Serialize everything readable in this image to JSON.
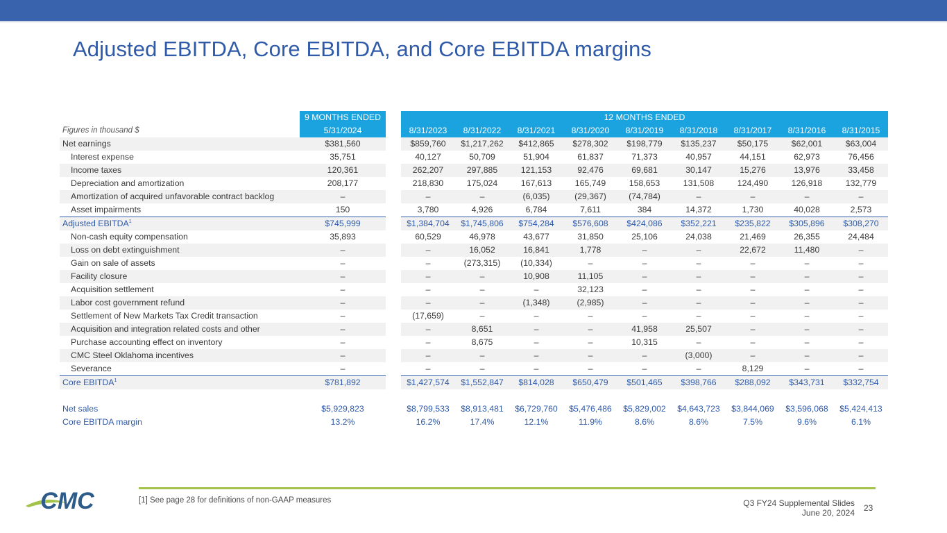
{
  "title": "Adjusted EBITDA, Core EBITDA, and Core EBITDA margins",
  "table": {
    "header_group_left": "9 MONTHS ENDED",
    "header_group_right": "12 MONTHS ENDED",
    "figures_note": "Figures in thousand $",
    "columns": [
      "5/31/2024",
      "8/31/2023",
      "8/31/2022",
      "8/31/2021",
      "8/31/2020",
      "8/31/2019",
      "8/31/2018",
      "8/31/2017",
      "8/31/2016",
      "8/31/2015"
    ],
    "rows": [
      {
        "label": "Net earnings",
        "values": [
          "$381,560",
          "$859,760",
          "$1,217,262",
          "$412,865",
          "$278,302",
          "$198,779",
          "$135,237",
          "$50,175",
          "$62,001",
          "$63,004"
        ]
      },
      {
        "label": "Interest expense",
        "values": [
          "35,751",
          "40,127",
          "50,709",
          "51,904",
          "61,837",
          "71,373",
          "40,957",
          "44,151",
          "62,973",
          "76,456"
        ]
      },
      {
        "label": "Income taxes",
        "values": [
          "120,361",
          "262,207",
          "297,885",
          "121,153",
          "92,476",
          "69,681",
          "30,147",
          "15,276",
          "13,976",
          "33,458"
        ]
      },
      {
        "label": "Depreciation and amortization",
        "values": [
          "208,177",
          "218,830",
          "175,024",
          "167,613",
          "165,749",
          "158,653",
          "131,508",
          "124,490",
          "126,918",
          "132,779"
        ]
      },
      {
        "label": "Amortization of acquired unfavorable contract backlog",
        "values": [
          "–",
          "–",
          "–",
          "(6,035)",
          "(29,367)",
          "(74,784)",
          "–",
          "–",
          "–",
          "–"
        ]
      },
      {
        "label": "Asset impairments",
        "values": [
          "150",
          "3,780",
          "4,926",
          "6,784",
          "7,611",
          "384",
          "14,372",
          "1,730",
          "40,028",
          "2,573"
        ]
      },
      {
        "label": "Adjusted EBITDA",
        "sup": "1",
        "values": [
          "$745,999",
          "$1,384,704",
          "$1,745,806",
          "$754,284",
          "$576,608",
          "$424,086",
          "$352,221",
          "$235,822",
          "$305,896",
          "$308,270"
        ]
      },
      {
        "label": "Non-cash equity compensation",
        "values": [
          "35,893",
          "60,529",
          "46,978",
          "43,677",
          "31,850",
          "25,106",
          "24,038",
          "21,469",
          "26,355",
          "24,484"
        ]
      },
      {
        "label": "Loss on debt extinguishment",
        "values": [
          "–",
          "–",
          "16,052",
          "16,841",
          "1,778",
          "–",
          "–",
          "22,672",
          "11,480",
          "–"
        ]
      },
      {
        "label": "Gain on sale of assets",
        "values": [
          "–",
          "–",
          "(273,315)",
          "(10,334)",
          "–",
          "–",
          "–",
          "–",
          "–",
          "–"
        ]
      },
      {
        "label": "Facility closure",
        "values": [
          "–",
          "–",
          "–",
          "10,908",
          "11,105",
          "–",
          "–",
          "–",
          "–",
          "–"
        ]
      },
      {
        "label": "Acquisition settlement",
        "values": [
          "–",
          "–",
          "–",
          "–",
          "32,123",
          "–",
          "–",
          "–",
          "–",
          "–"
        ]
      },
      {
        "label": "Labor cost government refund",
        "values": [
          "–",
          "–",
          "–",
          "(1,348)",
          "(2,985)",
          "–",
          "–",
          "–",
          "–",
          "–"
        ]
      },
      {
        "label": "Settlement of New Markets Tax Credit transaction",
        "values": [
          "–",
          "(17,659)",
          "–",
          "–",
          "–",
          "–",
          "–",
          "–",
          "–",
          "–"
        ]
      },
      {
        "label": "Acquisition and integration related costs and other",
        "values": [
          "–",
          "–",
          "8,651",
          "–",
          "–",
          "41,958",
          "25,507",
          "–",
          "–",
          "–"
        ]
      },
      {
        "label": "Purchase accounting effect on inventory",
        "values": [
          "–",
          "–",
          "8,675",
          "–",
          "–",
          "10,315",
          "–",
          "–",
          "–",
          "–"
        ]
      },
      {
        "label": "CMC Steel Oklahoma incentives",
        "values": [
          "–",
          "–",
          "–",
          "–",
          "–",
          "–",
          "(3,000)",
          "–",
          "–",
          "–"
        ]
      },
      {
        "label": "Severance",
        "values": [
          "–",
          "–",
          "–",
          "–",
          "–",
          "–",
          "–",
          "8,129",
          "–",
          "–"
        ]
      },
      {
        "label": "Core EBITDA",
        "sup": "1",
        "values": [
          "$781,892",
          "$1,427,574",
          "$1,552,847",
          "$814,028",
          "$650,479",
          "$501,465",
          "$398,766",
          "$288,092",
          "$343,731",
          "$332,754"
        ]
      },
      {
        "label": "Net sales",
        "values": [
          "$5,929,823",
          "$8,799,533",
          "$8,913,481",
          "$6,729,760",
          "$5,476,486",
          "$5,829,002",
          "$4,643,723",
          "$3,844,069",
          "$3,596,068",
          "$5,424,413"
        ]
      },
      {
        "label": "Core EBITDA margin",
        "values": [
          "13.2%",
          "16.2%",
          "17.4%",
          "12.1%",
          "11.9%",
          "8.6%",
          "8.6%",
          "7.5%",
          "9.6%",
          "6.1%"
        ]
      }
    ]
  },
  "footer": {
    "footnote": "[1] See page 28 for definitions of non-GAAP measures",
    "deck_title": "Q3 FY24 Supplemental Slides",
    "date": "June 20, 2024",
    "page_number": "23",
    "logo_text": "CMC"
  },
  "colors": {
    "title_blue": "#2f5aa8",
    "header_cyan": "#1aa3df",
    "accent_green": "#a4c34a",
    "top_bar": "#3a63ad"
  }
}
